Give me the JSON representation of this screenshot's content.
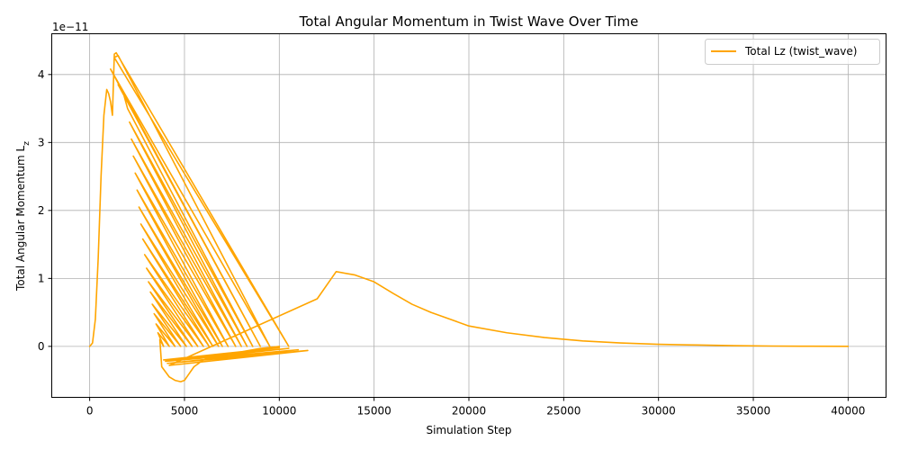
{
  "chart_data": {
    "type": "line",
    "title": "Total Angular Momentum in Twist Wave Over Time",
    "xlabel": "Simulation Step",
    "ylabel": "Total Angular Momentum L",
    "ylabel_sub": "z",
    "y_multiplier_label": "1e−11",
    "xlim": [
      -2000,
      42000
    ],
    "ylim": [
      -0.75,
      4.6
    ],
    "x_ticks": [
      0,
      5000,
      10000,
      15000,
      20000,
      25000,
      30000,
      35000,
      40000
    ],
    "x_tick_labels": [
      "0",
      "5000",
      "10000",
      "15000",
      "20000",
      "25000",
      "30000",
      "35000",
      "40000"
    ],
    "y_ticks": [
      0,
      1,
      2,
      3,
      4
    ],
    "y_tick_labels": [
      "0",
      "1",
      "2",
      "3",
      "4"
    ],
    "grid": true,
    "legend_position": "top-right",
    "color": "#FFA500",
    "series": [
      {
        "name": "Total Lz (twist_wave)",
        "x": [
          0,
          150,
          300,
          450,
          600,
          750,
          900,
          1000,
          1100,
          1200,
          1300,
          1400,
          10500,
          1300,
          1500,
          9500,
          1100,
          9000,
          1500,
          1800,
          2000,
          8600,
          2100,
          8300,
          2200,
          8000,
          2300,
          7700,
          2400,
          7300,
          2500,
          7000,
          2600,
          6800,
          2700,
          6500,
          2800,
          6300,
          2900,
          6000,
          3000,
          5700,
          3100,
          5400,
          3200,
          5100,
          3300,
          4800,
          3400,
          4500,
          3500,
          4200,
          3600,
          3900,
          3700,
          3800,
          4200,
          4500,
          4800,
          5000,
          5200,
          5500,
          6000,
          6500,
          7000,
          8000,
          9000,
          10000,
          10000,
          3900,
          10500,
          4000,
          11000,
          4100,
          11500,
          4200,
          12000,
          13000,
          14000,
          15000,
          16000,
          17000,
          18000,
          19000,
          20000,
          22000,
          24000,
          26000,
          28000,
          30000,
          32000,
          34000,
          36000,
          38000,
          40000
        ],
        "y": [
          0,
          0.05,
          0.4,
          1.3,
          2.5,
          3.4,
          3.78,
          3.72,
          3.6,
          3.4,
          4.3,
          4.32,
          0,
          4.25,
          4.28,
          0,
          4.08,
          0,
          3.85,
          3.7,
          3.5,
          0,
          3.3,
          0,
          3.05,
          0,
          2.8,
          0,
          2.55,
          0,
          2.3,
          0,
          2.05,
          0,
          1.8,
          0,
          1.58,
          0,
          1.35,
          0,
          1.15,
          0,
          0.95,
          0,
          0.8,
          0,
          0.62,
          0,
          0.48,
          0,
          0.33,
          0,
          0.2,
          0,
          0.1,
          -0.3,
          -0.45,
          -0.5,
          -0.52,
          -0.5,
          -0.42,
          -0.3,
          -0.2,
          -0.15,
          -0.12,
          -0.08,
          -0.03,
          0,
          -0.02,
          -0.2,
          -0.03,
          -0.22,
          -0.05,
          -0.25,
          -0.06,
          -0.28,
          0.7,
          1.1,
          1.05,
          0.95,
          0.78,
          0.62,
          0.5,
          0.4,
          0.3,
          0.2,
          0.13,
          0.08,
          0.05,
          0.03,
          0.02,
          0.01,
          0.005,
          0.002,
          0
        ]
      }
    ]
  }
}
